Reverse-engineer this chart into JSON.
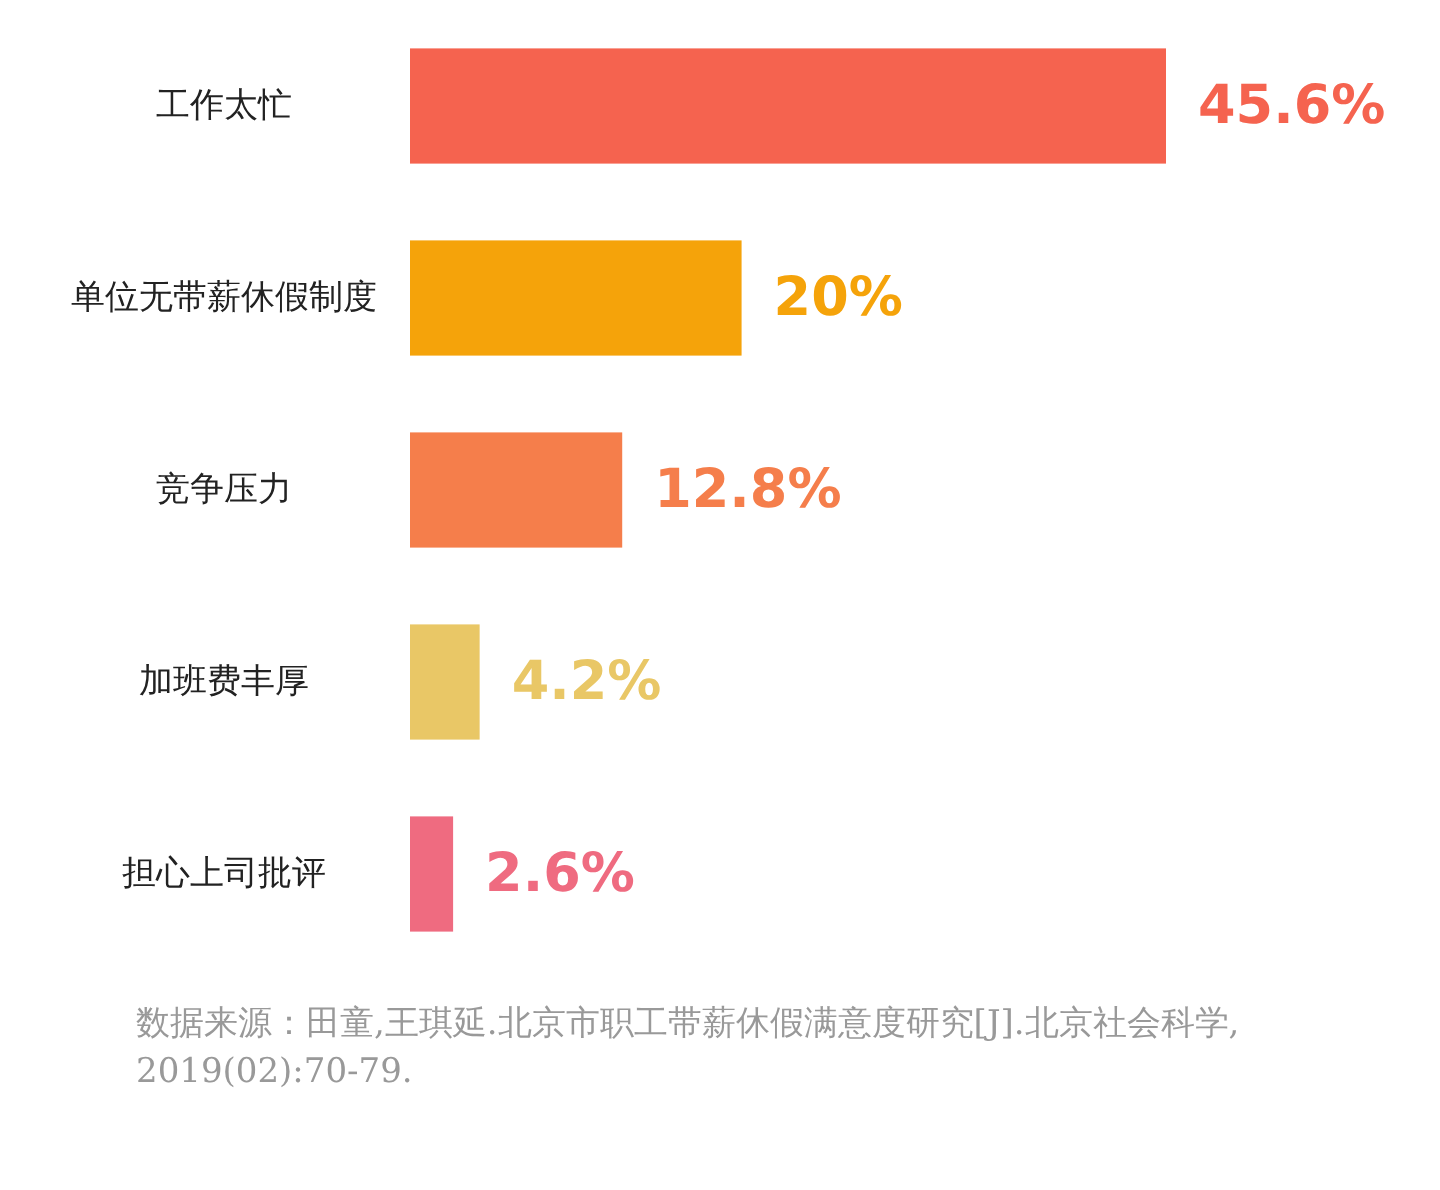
{
  "chart_data": {
    "type": "bar",
    "orientation": "horizontal",
    "categories": [
      "工作太忙",
      "单位无带薪休假制度",
      "竞争压力",
      "加班费丰厚",
      "担心上司批评"
    ],
    "values": [
      45.6,
      20,
      12.8,
      4.2,
      2.6
    ],
    "colors": [
      "#f5634f",
      "#f5a30a",
      "#f57e4b",
      "#e9c766",
      "#ef6b80"
    ],
    "value_labels": [
      "45.6%",
      "20%",
      "12.8%",
      "4.2%",
      "2.6%"
    ],
    "annotations": [
      "数据来源：田童,王琪延.北京市职工带薪休假满意度研究[J].北京社会科学,2019(02):70-79."
    ]
  }
}
